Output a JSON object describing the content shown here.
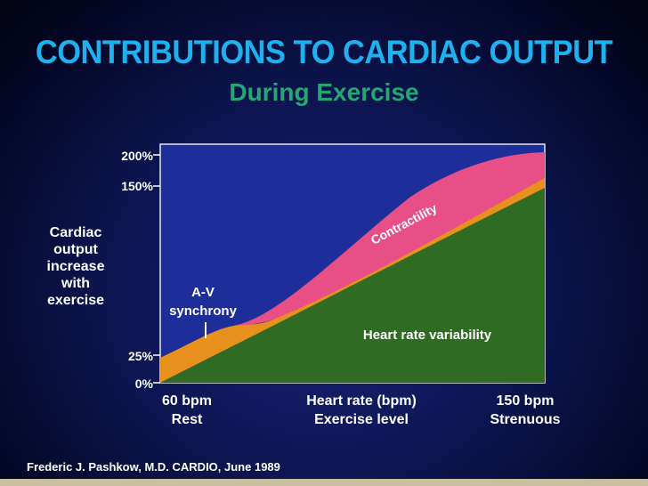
{
  "title": "CONTRIBUTIONS TO CARDIAC OUTPUT",
  "subtitle": "During Exercise",
  "y_axis_label": [
    "Cardiac",
    "output",
    "increase",
    "with",
    "exercise"
  ],
  "credit": "Frederic J. Pashkow, M.D. CARDIO, June 1989",
  "colors": {
    "title": "#1fb0f0",
    "subtitle": "#23a875",
    "heart_rate_variability": "#2f6b22",
    "av_synchrony": "#e8901e",
    "contractility": "#e84f86",
    "plot_background": "#1d2e9a"
  },
  "chart_data": {
    "type": "area",
    "title": "CONTRIBUTIONS TO CARDIAC OUTPUT",
    "subtitle": "During Exercise",
    "y_ticks": [
      "200%",
      "150%",
      "25%",
      "0%"
    ],
    "x_ticks": [
      {
        "line1": "60 bpm",
        "line2": "Rest"
      },
      {
        "line1": "Heart rate (bpm)",
        "line2": "Exercise level"
      },
      {
        "line1": "150 bpm",
        "line2": "Strenuous"
      }
    ],
    "annotations": {
      "av_synchrony": [
        "A-V",
        "synchrony"
      ],
      "contractility": "Contractility",
      "heart_rate_variability": "Heart rate variability"
    },
    "series": [
      {
        "name": "Heart rate variability",
        "x": [
          0,
          0.5,
          1
        ],
        "cumulative_top": [
          0,
          2,
          4
        ]
      },
      {
        "name": "A-V synchrony",
        "x": [
          0,
          0.2,
          0.3,
          0.5,
          1
        ],
        "cumulative_top": [
          0.6,
          1.4,
          1.5,
          2.1,
          4
        ]
      },
      {
        "name": "Contractility",
        "x": [
          0,
          0.2,
          0.3,
          0.5,
          0.75,
          1
        ],
        "cumulative_top": [
          0.6,
          1.4,
          1.5,
          2.5,
          3.9,
          4.4
        ]
      }
    ]
  }
}
